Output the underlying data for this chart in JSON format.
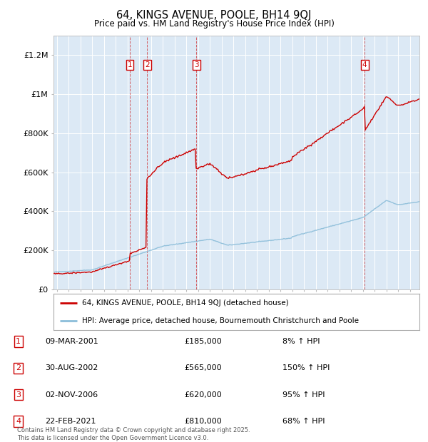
{
  "title": "64, KINGS AVENUE, POOLE, BH14 9QJ",
  "subtitle": "Price paid vs. HM Land Registry's House Price Index (HPI)",
  "ylabel_ticks": [
    "£0",
    "£200K",
    "£400K",
    "£600K",
    "£800K",
    "£1M",
    "£1.2M"
  ],
  "ytick_vals": [
    0,
    200000,
    400000,
    600000,
    800000,
    1000000,
    1200000
  ],
  "ylim": [
    0,
    1300000
  ],
  "xlim_start": 1994.7,
  "xlim_end": 2025.8,
  "bg_color": "#dce9f5",
  "red_line_color": "#cc0000",
  "blue_line_color": "#8bbdd9",
  "sale_markers": [
    {
      "num": 1,
      "year": 2001.19,
      "price": 185000,
      "date": "09-MAR-2001",
      "pct": "8%"
    },
    {
      "num": 2,
      "year": 2002.66,
      "price": 565000,
      "date": "30-AUG-2002",
      "pct": "150%"
    },
    {
      "num": 3,
      "year": 2006.84,
      "price": 620000,
      "date": "02-NOV-2006",
      "pct": "95%"
    },
    {
      "num": 4,
      "year": 2021.14,
      "price": 810000,
      "date": "22-FEB-2021",
      "pct": "68%"
    }
  ],
  "footer": "Contains HM Land Registry data © Crown copyright and database right 2025.\nThis data is licensed under the Open Government Licence v3.0.",
  "legend_line1": "64, KINGS AVENUE, POOLE, BH14 9QJ (detached house)",
  "legend_line2": "HPI: Average price, detached house, Bournemouth Christchurch and Poole",
  "table_rows": [
    {
      "num": 1,
      "date": "09-MAR-2001",
      "price": "£185,000",
      "pct": "8% ↑ HPI"
    },
    {
      "num": 2,
      "date": "30-AUG-2002",
      "price": "£565,000",
      "pct": "150% ↑ HPI"
    },
    {
      "num": 3,
      "date": "02-NOV-2006",
      "price": "£620,000",
      "pct": "95% ↑ HPI"
    },
    {
      "num": 4,
      "date": "22-FEB-2021",
      "price": "£810,000",
      "pct": "68% ↑ HPI"
    }
  ]
}
